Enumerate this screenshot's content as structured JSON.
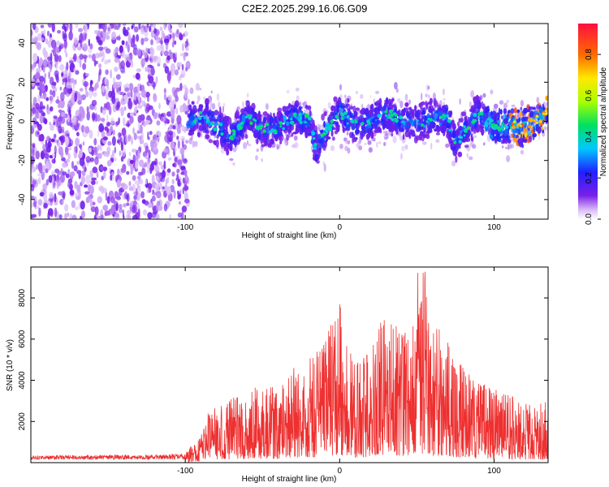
{
  "title": "C2E2.2025.299.16.06.G09",
  "chart_data": [
    {
      "type": "heatmap",
      "name": "spectrogram",
      "xlabel": "Height of straight line (km)",
      "ylabel": "Frequency (Hz)",
      "xlim": [
        -200,
        135
      ],
      "ylim": [
        -50,
        50
      ],
      "xticks": [
        -100,
        0,
        100
      ],
      "yticks": [
        -40,
        -20,
        0,
        20,
        40
      ],
      "colorbar": {
        "label": "Normalized spectral amplitude",
        "range": [
          0,
          0.95
        ],
        "ticks": [
          0.0,
          0.2,
          0.4,
          0.6,
          0.8
        ]
      },
      "ridge_frequency_track": {
        "x": [
          -98,
          -90,
          -80,
          -70,
          -60,
          -50,
          -40,
          -30,
          -20,
          -15,
          -10,
          0,
          10,
          20,
          30,
          40,
          50,
          60,
          70,
          75,
          80,
          90,
          100,
          110,
          120,
          130,
          135
        ],
        "y": [
          0,
          3,
          -2,
          -8,
          2,
          -4,
          -3,
          2,
          1,
          -14,
          -6,
          5,
          -2,
          0,
          4,
          0,
          -1,
          2,
          1,
          -12,
          -6,
          4,
          -3,
          -2,
          -3,
          2,
          4
        ]
      },
      "noise_region_x": [
        -200,
        -98
      ]
    },
    {
      "type": "line",
      "name": "snr",
      "xlabel": "Height of straight line (km)",
      "ylabel": "SNR (10 * v/v)",
      "xlim": [
        -200,
        135
      ],
      "ylim": [
        0,
        9500
      ],
      "xticks": [
        -100,
        0,
        100
      ],
      "yticks": [
        2000,
        4000,
        6000,
        8000
      ],
      "color": "#ee3030",
      "envelope": {
        "x": [
          -200,
          -120,
          -100,
          -92,
          -85,
          -70,
          -60,
          -50,
          -40,
          -30,
          -20,
          -10,
          0,
          10,
          20,
          30,
          40,
          50,
          55,
          60,
          70,
          80,
          90,
          100,
          110,
          120,
          130,
          135
        ],
        "y": [
          350,
          380,
          450,
          1200,
          2500,
          3100,
          3600,
          3700,
          3700,
          4600,
          5000,
          5800,
          7900,
          4800,
          5600,
          7500,
          6500,
          6800,
          9400,
          6700,
          6200,
          4600,
          4100,
          3600,
          3300,
          3000,
          2900,
          3000
        ]
      }
    }
  ]
}
